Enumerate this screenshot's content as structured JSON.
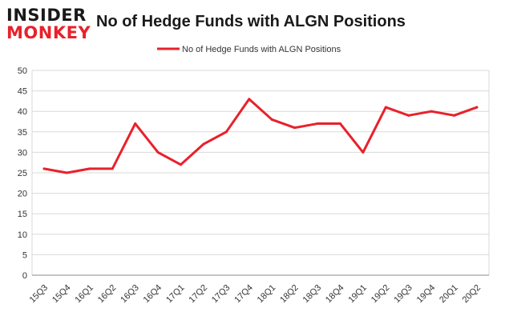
{
  "logo": {
    "line1": "INSIDER",
    "line2": "MONKEY"
  },
  "colors": {
    "series": "#e8212b",
    "logo_dark": "#1a1a1a",
    "logo_red": "#e8212b"
  },
  "chart_data": {
    "type": "line",
    "title": "No of Hedge Funds with ALGN Positions",
    "xlabel": "",
    "ylabel": "",
    "legend_position": "top-center",
    "grid": true,
    "ylim": [
      0,
      50
    ],
    "yticks": [
      0,
      5,
      10,
      15,
      20,
      25,
      30,
      35,
      40,
      45,
      50
    ],
    "categories": [
      "15Q3",
      "15Q4",
      "16Q1",
      "16Q2",
      "16Q3",
      "16Q4",
      "17Q1",
      "17Q2",
      "17Q3",
      "17Q4",
      "18Q1",
      "18Q2",
      "18Q3",
      "18Q4",
      "19Q1",
      "19Q2",
      "19Q3",
      "19Q4",
      "20Q1",
      "20Q2"
    ],
    "series": [
      {
        "name": "No of Hedge Funds with ALGN Positions",
        "color": "#e8212b",
        "values": [
          26,
          25,
          26,
          26,
          37,
          30,
          27,
          32,
          35,
          43,
          38,
          36,
          37,
          37,
          30,
          41,
          39,
          40,
          39,
          41
        ]
      }
    ]
  }
}
